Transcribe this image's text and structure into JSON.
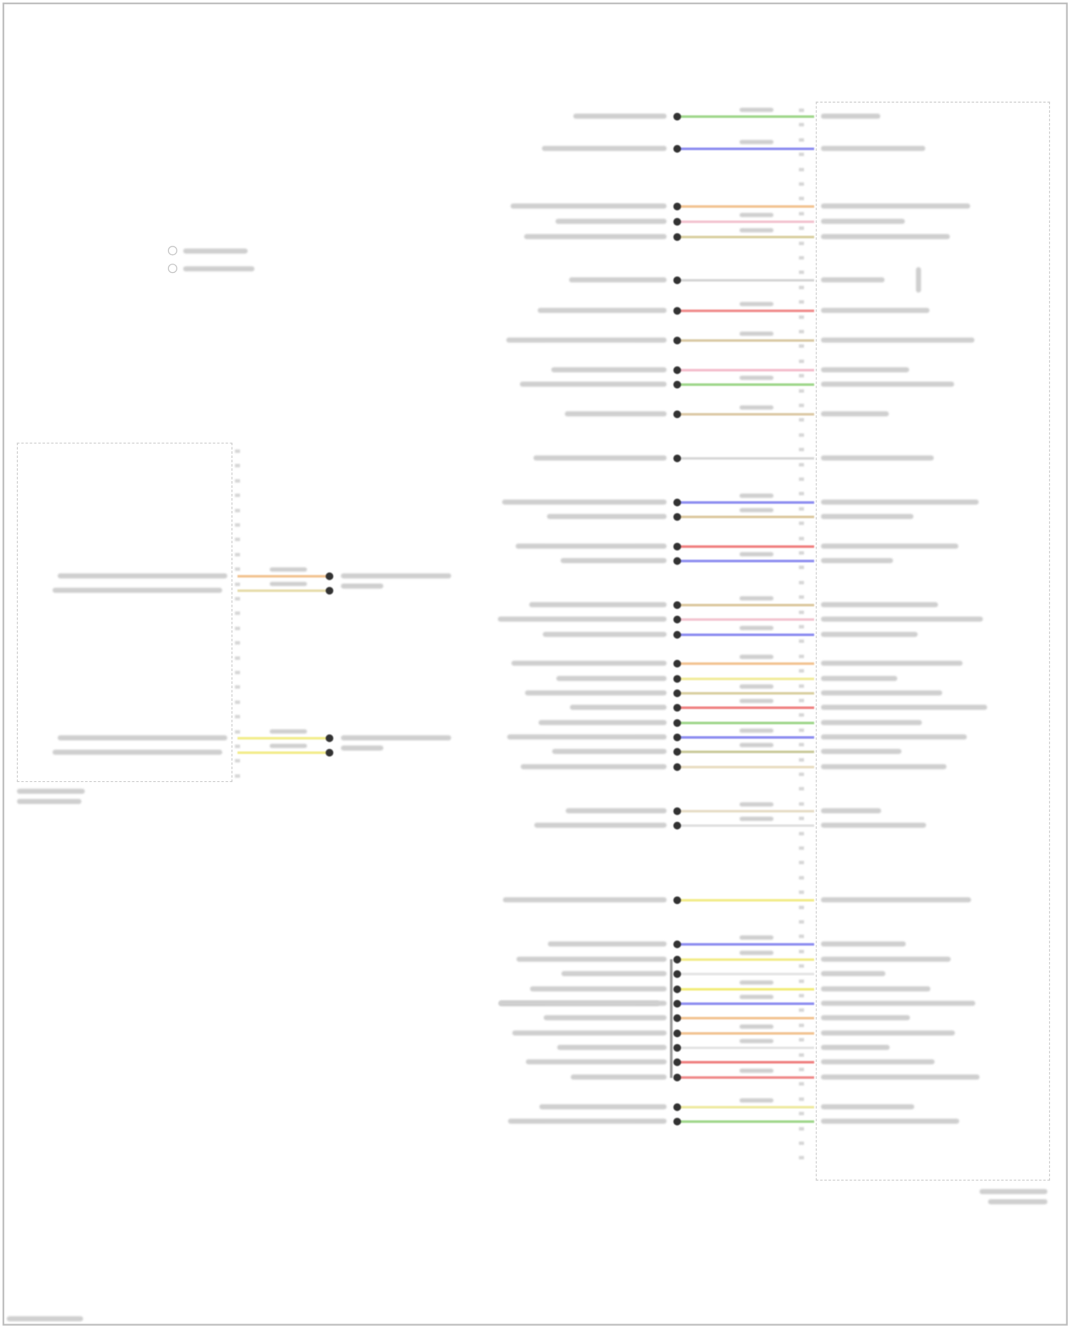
{
  "diagram": {
    "legend_symbols": [
      "connector-circle-icon",
      "connector-circle-icon"
    ],
    "right_connector": {
      "wires": [
        {
          "color": "#9ed68a"
        },
        {
          "color": "#8c8cf0"
        },
        {
          "color": "#f2c391"
        },
        {
          "color": "#f3c4d0"
        },
        {
          "color": "#d9cfa0"
        },
        {
          "color": "#d6d6d6"
        },
        {
          "color": "#ef8a8a"
        },
        {
          "color": "#d9c9a4"
        },
        {
          "color": "#f3bccb"
        },
        {
          "color": "#9ed68a"
        },
        {
          "color": "#dcc9a6"
        },
        {
          "color": "#d8d8d8"
        },
        {
          "color": "#8c8cf0"
        },
        {
          "color": "#dcc89e"
        },
        {
          "color": "#ef7f7f"
        },
        {
          "color": "#8c8cf0"
        },
        {
          "color": "#dcc89e"
        },
        {
          "color": "#f3c4d0"
        },
        {
          "color": "#8c8cf0"
        },
        {
          "color": "#f2c391"
        },
        {
          "color": "#f2ec9a"
        },
        {
          "color": "#d9cfa0"
        },
        {
          "color": "#ef7f7f"
        },
        {
          "color": "#9ed68a"
        },
        {
          "color": "#8c8cf0"
        },
        {
          "color": "#c9c99a"
        },
        {
          "color": "#e8dcc0"
        },
        {
          "color": "#e6dcc6"
        },
        {
          "color": "#e0e0e0"
        },
        {
          "color": "#f2ec8a"
        },
        {
          "color": "#8c8cf0"
        },
        {
          "color": "#f2ec8a"
        },
        {
          "color": "#e4e4e4"
        },
        {
          "color": "#f2ec7a"
        },
        {
          "color": "#8c8cf0"
        },
        {
          "color": "#f2c391"
        },
        {
          "color": "#f2c391"
        },
        {
          "color": "#e4e4e4"
        },
        {
          "color": "#ef7f7f"
        },
        {
          "color": "#ef8a8a"
        },
        {
          "color": "#eeeaa0"
        },
        {
          "color": "#9ed68a"
        }
      ]
    },
    "left_connector": {
      "wires": [
        {
          "color": "#f2c391"
        },
        {
          "color": "#e6dcaa"
        },
        {
          "color": "#f2ec8a"
        },
        {
          "color": "#f2ec8a"
        }
      ]
    }
  }
}
